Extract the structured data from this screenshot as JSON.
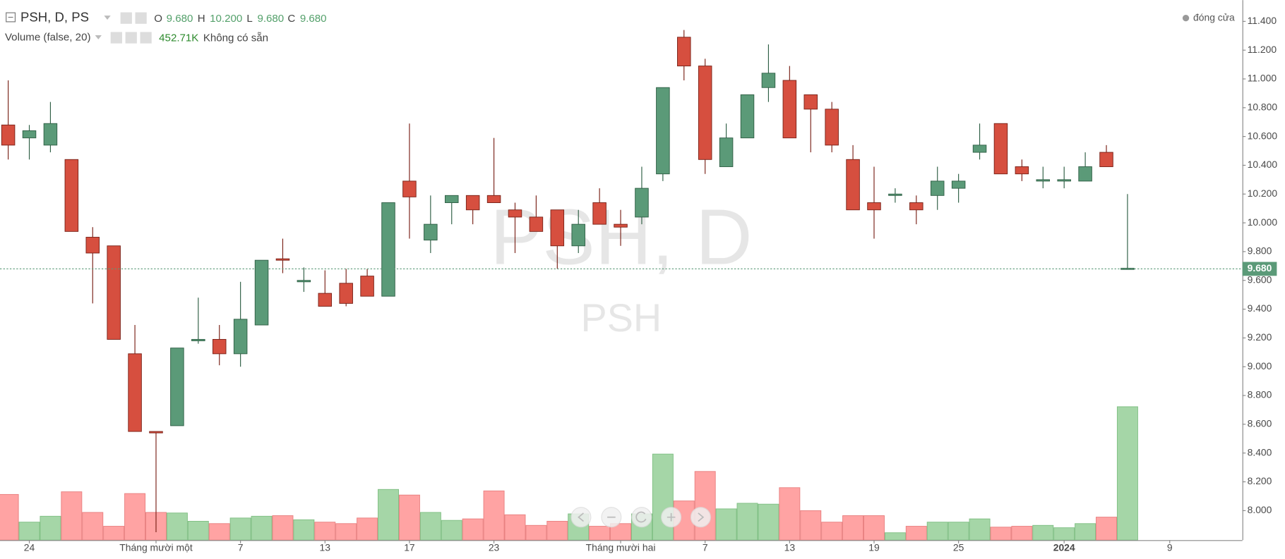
{
  "chart_data": {
    "type": "candlestick",
    "title": "PSH, D, PS",
    "watermark": "PSH, D",
    "watermark_sub": "PSH",
    "ohlc_labels": [
      "O",
      "H",
      "L",
      "C"
    ],
    "ohlc_values": [
      "9.680",
      "10.200",
      "9.680",
      "9.680"
    ],
    "volume_title": "Volume (false, 20)",
    "volume_value": "452.71K",
    "volume_note": "Không có sẵn",
    "status": "đóng cửa",
    "up_color": "#5b9a78",
    "down_color": "#d64f3f",
    "up_volume_color": "#a5d6a7",
    "down_volume_color": "#ffa3a3",
    "categories": [
      null,
      "24",
      null,
      null,
      null,
      null,
      null,
      "Tháng mười một",
      null,
      null,
      null,
      "7",
      null,
      null,
      null,
      "13",
      null,
      null,
      null,
      "17",
      null,
      null,
      null,
      "23",
      null,
      null,
      null,
      null,
      null,
      "Tháng mười hai",
      null,
      null,
      null,
      "7",
      null,
      null,
      null,
      "13",
      null,
      null,
      null,
      "19",
      null,
      null,
      null,
      "25",
      null,
      null,
      null,
      null,
      "2024",
      null,
      null,
      null,
      null,
      "9"
    ],
    "open": [
      10.68,
      10.59,
      10.54,
      10.44,
      9.9,
      9.84,
      9.09,
      8.55,
      8.59,
      9.18,
      9.19,
      9.09,
      9.29,
      9.75,
      9.59,
      9.51,
      9.58,
      9.63,
      9.49,
      10.29,
      9.88,
      10.14,
      10.19,
      10.19,
      10.09,
      10.04,
      10.09,
      9.84,
      10.14,
      9.99,
      10.04,
      10.34,
      11.29,
      11.09,
      10.39,
      10.59,
      10.94,
      10.99,
      10.89,
      10.79,
      10.44,
      10.14,
      10.19,
      10.14,
      10.19,
      10.24,
      10.49,
      10.69,
      10.39,
      10.29,
      10.29,
      10.29,
      10.49,
      9.68,
      null,
      null
    ],
    "high": [
      10.99,
      10.68,
      10.84,
      10.44,
      9.97,
      9.84,
      9.29,
      8.55,
      9.13,
      9.48,
      9.29,
      9.59,
      9.74,
      9.89,
      9.69,
      9.67,
      9.68,
      9.68,
      10.14,
      10.69,
      10.19,
      10.19,
      10.19,
      10.59,
      10.14,
      10.19,
      10.09,
      10.09,
      10.24,
      10.09,
      10.39,
      10.94,
      11.34,
      11.14,
      10.69,
      10.89,
      11.24,
      11.09,
      10.89,
      10.84,
      10.54,
      10.39,
      10.24,
      10.19,
      10.39,
      10.34,
      10.69,
      10.69,
      10.44,
      10.39,
      10.39,
      10.49,
      10.54,
      10.2,
      null,
      null
    ],
    "low": [
      10.44,
      10.44,
      10.49,
      9.94,
      9.44,
      9.19,
      8.55,
      7.85,
      8.59,
      9.16,
      9.01,
      9.0,
      9.29,
      9.65,
      9.52,
      9.42,
      9.42,
      9.49,
      9.49,
      9.89,
      9.79,
      9.99,
      9.99,
      10.14,
      9.79,
      9.94,
      9.68,
      9.79,
      9.99,
      9.84,
      9.99,
      10.29,
      10.99,
      10.34,
      10.39,
      10.59,
      10.84,
      10.59,
      10.49,
      10.49,
      10.09,
      9.89,
      10.14,
      9.99,
      10.09,
      10.14,
      10.44,
      10.34,
      10.29,
      10.24,
      10.24,
      10.29,
      10.39,
      9.68,
      null,
      null
    ],
    "close": [
      10.54,
      10.64,
      10.69,
      9.94,
      9.79,
      9.19,
      8.55,
      8.54,
      9.13,
      9.19,
      9.09,
      9.33,
      9.74,
      9.74,
      9.6,
      9.42,
      9.44,
      9.49,
      10.14,
      10.18,
      9.99,
      10.19,
      10.09,
      10.14,
      10.04,
      9.94,
      9.84,
      9.99,
      9.99,
      9.97,
      10.24,
      10.94,
      11.09,
      10.44,
      10.59,
      10.89,
      11.04,
      10.59,
      10.79,
      10.54,
      10.09,
      10.09,
      10.2,
      10.09,
      10.29,
      10.29,
      10.54,
      10.34,
      10.34,
      10.3,
      10.3,
      10.39,
      10.39,
      9.68,
      null,
      null
    ],
    "volume": [
      155,
      61,
      81,
      164,
      94,
      47,
      158,
      94,
      92,
      64,
      56,
      75,
      81,
      83,
      69,
      61,
      56,
      75,
      172,
      153,
      94,
      67,
      72,
      167,
      86,
      50,
      64,
      89,
      47,
      56,
      89,
      292,
      133,
      233,
      106,
      125,
      122,
      178,
      100,
      61,
      83,
      83,
      25,
      47,
      61,
      61,
      72,
      44,
      47,
      50,
      42,
      56,
      78,
      452.71,
      null,
      null
    ],
    "ylim": [
      7.795,
      11.548
    ],
    "volume_ylim": [
      0,
      1833
    ],
    "yticks": [
      {
        "value": 8.0,
        "label": "8.000"
      },
      {
        "value": 8.2,
        "label": "8.200"
      },
      {
        "value": 8.4,
        "label": "8.400"
      },
      {
        "value": 8.6,
        "label": "8.600"
      },
      {
        "value": 8.8,
        "label": "8.800"
      },
      {
        "value": 9.0,
        "label": "9.000"
      },
      {
        "value": 9.2,
        "label": "9.200"
      },
      {
        "value": 9.4,
        "label": "9.400"
      },
      {
        "value": 9.6,
        "label": "9.600"
      },
      {
        "value": 9.8,
        "label": "9.800"
      },
      {
        "value": 10.0,
        "label": "10.000"
      },
      {
        "value": 10.2,
        "label": "10.200"
      },
      {
        "value": 10.4,
        "label": "10.400"
      },
      {
        "value": 10.6,
        "label": "10.600"
      },
      {
        "value": 10.8,
        "label": "10.800"
      },
      {
        "value": 11.0,
        "label": "11.000"
      },
      {
        "value": 11.2,
        "label": "11.200"
      },
      {
        "value": 11.4,
        "label": "11.400"
      }
    ],
    "last_price": {
      "value": 9.68,
      "label": "9.680"
    }
  }
}
